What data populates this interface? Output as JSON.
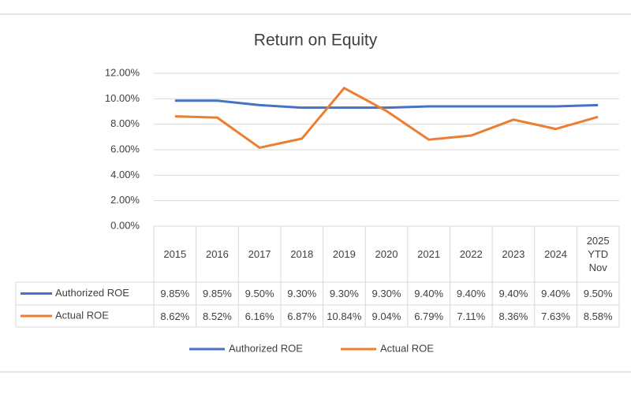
{
  "chart_data": {
    "type": "line",
    "title": "Return on Equity",
    "categories": [
      "2015",
      "2016",
      "2017",
      "2018",
      "2019",
      "2020",
      "2021",
      "2022",
      "2023",
      "2024",
      "2025 YTD Nov"
    ],
    "series": [
      {
        "name": "Authorized ROE",
        "color": "#4472c4",
        "values": [
          9.85,
          9.85,
          9.5,
          9.3,
          9.3,
          9.3,
          9.4,
          9.4,
          9.4,
          9.4,
          9.5
        ],
        "value_labels": [
          "9.85%",
          "9.85%",
          "9.50%",
          "9.30%",
          "9.30%",
          "9.30%",
          "9.40%",
          "9.40%",
          "9.40%",
          "9.40%",
          "9.50%"
        ]
      },
      {
        "name": "Actual ROE",
        "color": "#ed7d31",
        "values": [
          8.62,
          8.52,
          6.16,
          6.87,
          10.84,
          9.04,
          6.79,
          7.11,
          8.36,
          7.63,
          8.58
        ],
        "value_labels": [
          "8.62%",
          "8.52%",
          "6.16%",
          "6.87%",
          "10.84%",
          "9.04%",
          "6.79%",
          "7.11%",
          "8.36%",
          "7.63%",
          "8.58%"
        ]
      }
    ],
    "ylim": [
      0,
      12
    ],
    "yticks": [
      {
        "value": 0,
        "label": "0.00%"
      },
      {
        "value": 2,
        "label": "2.00%"
      },
      {
        "value": 4,
        "label": "4.00%"
      },
      {
        "value": 6,
        "label": "6.00%"
      },
      {
        "value": 8,
        "label": "8.00%"
      },
      {
        "value": 10,
        "label": "10.00%"
      },
      {
        "value": 12,
        "label": "12.00%"
      }
    ],
    "grid": true,
    "data_table": true,
    "legend": "bottom"
  }
}
